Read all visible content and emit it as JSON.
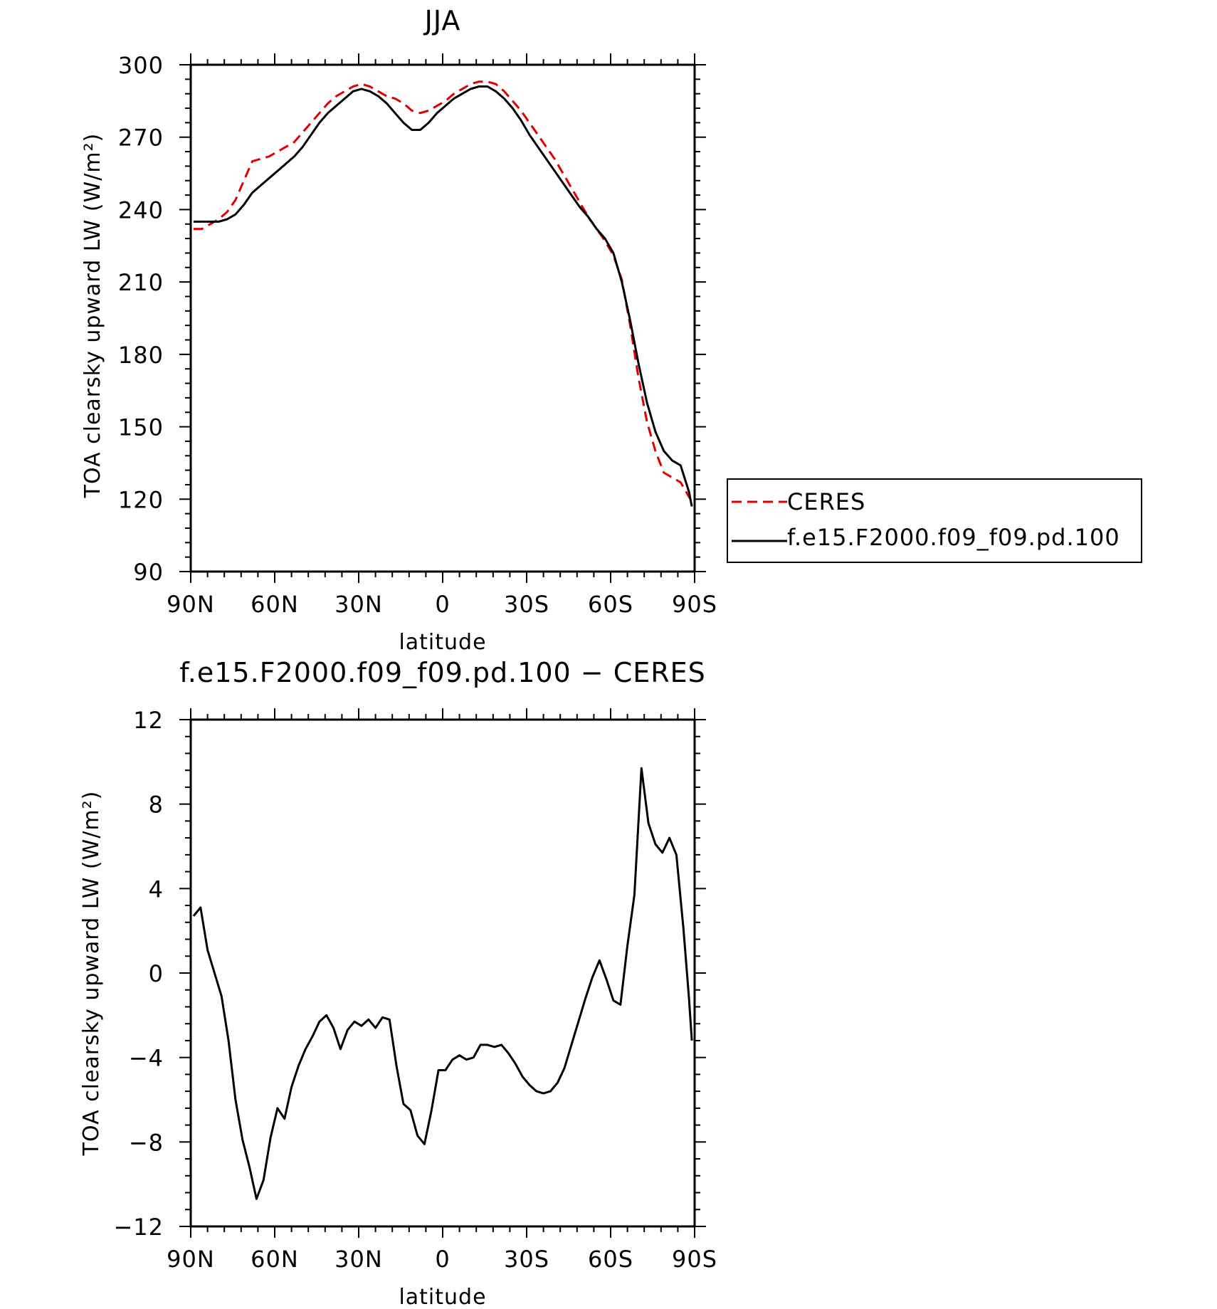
{
  "chart_data": [
    {
      "type": "line",
      "title": "JJA",
      "xlabel": "latitude",
      "ylabel": "TOA clearsky upward LW (W/m²)",
      "xlim": [
        90,
        -90
      ],
      "ylim": [
        90,
        300
      ],
      "xticks": [
        {
          "value": 90,
          "label": "90N"
        },
        {
          "value": 60,
          "label": "60N"
        },
        {
          "value": 30,
          "label": "30N"
        },
        {
          "value": 0,
          "label": "0"
        },
        {
          "value": -30,
          "label": "30S"
        },
        {
          "value": -60,
          "label": "60S"
        },
        {
          "value": -90,
          "label": "90S"
        }
      ],
      "yticks": [
        90,
        120,
        150,
        180,
        210,
        240,
        270,
        300
      ],
      "legend_position": "right",
      "series": [
        {
          "name": "CERES",
          "color": "#e00000",
          "dash": true,
          "points": [
            [
              89,
              232
            ],
            [
              86,
              232
            ],
            [
              83,
              234
            ],
            [
              80,
              236
            ],
            [
              77,
              239
            ],
            [
              74,
              244
            ],
            [
              71,
              252
            ],
            [
              68,
              260
            ],
            [
              65,
              261
            ],
            [
              62,
              262
            ],
            [
              59,
              264
            ],
            [
              56,
              266
            ],
            [
              53,
              268
            ],
            [
              50,
              272
            ],
            [
              47,
              276
            ],
            [
              44,
              280
            ],
            [
              41,
              284
            ],
            [
              38,
              287
            ],
            [
              35,
              289
            ],
            [
              32,
              291
            ],
            [
              29,
              292
            ],
            [
              26,
              291
            ],
            [
              23,
              289
            ],
            [
              20,
              287
            ],
            [
              17,
              286
            ],
            [
              14,
              284
            ],
            [
              11,
              281
            ],
            [
              8,
              280
            ],
            [
              5,
              281
            ],
            [
              2,
              283
            ],
            [
              -1,
              285
            ],
            [
              -4,
              288
            ],
            [
              -7,
              290
            ],
            [
              -10,
              292
            ],
            [
              -13,
              293
            ],
            [
              -16,
              293
            ],
            [
              -19,
              292
            ],
            [
              -22,
              289
            ],
            [
              -25,
              285
            ],
            [
              -28,
              281
            ],
            [
              -31,
              276
            ],
            [
              -34,
              271
            ],
            [
              -37,
              266
            ],
            [
              -40,
              261
            ],
            [
              -43,
              255
            ],
            [
              -46,
              249
            ],
            [
              -49,
              243
            ],
            [
              -52,
              237
            ],
            [
              -55,
              232
            ],
            [
              -58,
              227
            ],
            [
              -61,
              221
            ],
            [
              -64,
              211
            ],
            [
              -67,
              192
            ],
            [
              -70,
              170
            ],
            [
              -73,
              152
            ],
            [
              -76,
              140
            ],
            [
              -79,
              131
            ],
            [
              -82,
              129
            ],
            [
              -85,
              127
            ],
            [
              -88,
              121
            ],
            [
              -89,
              119
            ]
          ]
        },
        {
          "name": "f.e15.F2000.f09_f09.pd.100",
          "color": "#000000",
          "dash": false,
          "points": [
            [
              89,
              235
            ],
            [
              86,
              235
            ],
            [
              83,
              235
            ],
            [
              80,
              235
            ],
            [
              77,
              236
            ],
            [
              74,
              238
            ],
            [
              71,
              242
            ],
            [
              68,
              247
            ],
            [
              65,
              250
            ],
            [
              62,
              253
            ],
            [
              59,
              256
            ],
            [
              56,
              259
            ],
            [
              53,
              262
            ],
            [
              50,
              266
            ],
            [
              47,
              271
            ],
            [
              44,
              276
            ],
            [
              41,
              280
            ],
            [
              38,
              283
            ],
            [
              35,
              286
            ],
            [
              32,
              289
            ],
            [
              29,
              290
            ],
            [
              26,
              289
            ],
            [
              23,
              287
            ],
            [
              20,
              284
            ],
            [
              17,
              280
            ],
            [
              14,
              276
            ],
            [
              11,
              273
            ],
            [
              8,
              273
            ],
            [
              5,
              276
            ],
            [
              2,
              280
            ],
            [
              -1,
              283
            ],
            [
              -4,
              286
            ],
            [
              -7,
              288
            ],
            [
              -10,
              290
            ],
            [
              -13,
              291
            ],
            [
              -16,
              291
            ],
            [
              -19,
              289
            ],
            [
              -22,
              286
            ],
            [
              -25,
              282
            ],
            [
              -28,
              277
            ],
            [
              -31,
              271
            ],
            [
              -34,
              266
            ],
            [
              -37,
              261
            ],
            [
              -40,
              256
            ],
            [
              -43,
              251
            ],
            [
              -46,
              246
            ],
            [
              -49,
              241
            ],
            [
              -52,
              237
            ],
            [
              -55,
              232
            ],
            [
              -58,
              228
            ],
            [
              -61,
              222
            ],
            [
              -64,
              210
            ],
            [
              -67,
              194
            ],
            [
              -70,
              176
            ],
            [
              -73,
              160
            ],
            [
              -76,
              148
            ],
            [
              -79,
              140
            ],
            [
              -82,
              136
            ],
            [
              -85,
              134
            ],
            [
              -88,
              123
            ],
            [
              -89,
              117
            ]
          ]
        }
      ]
    },
    {
      "type": "line",
      "title": "f.e15.F2000.f09_f09.pd.100 − CERES",
      "xlabel": "latitude",
      "ylabel": "TOA clearsky upward LW (W/m²)",
      "xlim": [
        90,
        -90
      ],
      "ylim": [
        -12,
        12
      ],
      "xticks": [
        {
          "value": 90,
          "label": "90N"
        },
        {
          "value": 60,
          "label": "60N"
        },
        {
          "value": 30,
          "label": "30N"
        },
        {
          "value": 0,
          "label": "0"
        },
        {
          "value": -30,
          "label": "30S"
        },
        {
          "value": -60,
          "label": "60S"
        },
        {
          "value": -90,
          "label": "90S"
        }
      ],
      "yticks": [
        -12,
        -8,
        -4,
        0,
        4,
        8,
        12
      ],
      "series": [
        {
          "name": "",
          "color": "#000000",
          "dash": false,
          "points": [
            [
              89,
              2.7
            ],
            [
              86.5,
              3.1
            ],
            [
              84,
              1.1
            ],
            [
              81.5,
              0
            ],
            [
              79,
              -1.1
            ],
            [
              76.5,
              -3.2
            ],
            [
              74,
              -6
            ],
            [
              71.5,
              -7.9
            ],
            [
              69,
              -9.2
            ],
            [
              66.5,
              -10.7
            ],
            [
              64,
              -9.8
            ],
            [
              61.5,
              -7.8
            ],
            [
              59,
              -6.4
            ],
            [
              56.5,
              -6.9
            ],
            [
              54,
              -5.4
            ],
            [
              51.5,
              -4.4
            ],
            [
              49,
              -3.6
            ],
            [
              46.5,
              -3
            ],
            [
              44,
              -2.3
            ],
            [
              41.5,
              -2
            ],
            [
              39,
              -2.6
            ],
            [
              36.5,
              -3.6
            ],
            [
              34,
              -2.7
            ],
            [
              31.5,
              -2.3
            ],
            [
              29,
              -2.5
            ],
            [
              26.5,
              -2.2
            ],
            [
              24,
              -2.6
            ],
            [
              21.5,
              -2.1
            ],
            [
              19,
              -2.2
            ],
            [
              16.5,
              -4.4
            ],
            [
              14,
              -6.2
            ],
            [
              11.5,
              -6.5
            ],
            [
              9,
              -7.7
            ],
            [
              6.5,
              -8.1
            ],
            [
              4,
              -6.5
            ],
            [
              1.5,
              -4.6
            ],
            [
              -1,
              -4.6
            ],
            [
              -3.5,
              -4.1
            ],
            [
              -6,
              -3.9
            ],
            [
              -8.5,
              -4.1
            ],
            [
              -11,
              -4
            ],
            [
              -13.5,
              -3.4
            ],
            [
              -16,
              -3.4
            ],
            [
              -18.5,
              -3.5
            ],
            [
              -21,
              -3.4
            ],
            [
              -23.5,
              -3.8
            ],
            [
              -26,
              -4.3
            ],
            [
              -28.5,
              -4.9
            ],
            [
              -31,
              -5.3
            ],
            [
              -33.5,
              -5.6
            ],
            [
              -36,
              -5.7
            ],
            [
              -38.5,
              -5.6
            ],
            [
              -41,
              -5.2
            ],
            [
              -43.5,
              -4.5
            ],
            [
              -46,
              -3.4
            ],
            [
              -48.5,
              -2.3
            ],
            [
              -51,
              -1.2
            ],
            [
              -53.5,
              -0.2
            ],
            [
              -56,
              0.6
            ],
            [
              -58.5,
              -0.3
            ],
            [
              -61,
              -1.3
            ],
            [
              -63.5,
              -1.5
            ],
            [
              -66,
              1.3
            ],
            [
              -68.5,
              3.7
            ],
            [
              -71,
              9.7
            ],
            [
              -73.5,
              7.1
            ],
            [
              -76,
              6.1
            ],
            [
              -78.5,
              5.7
            ],
            [
              -81,
              6.4
            ],
            [
              -83.5,
              5.6
            ],
            [
              -86,
              2.1
            ],
            [
              -88,
              -1.2
            ],
            [
              -89,
              -3.2
            ]
          ]
        }
      ]
    }
  ]
}
